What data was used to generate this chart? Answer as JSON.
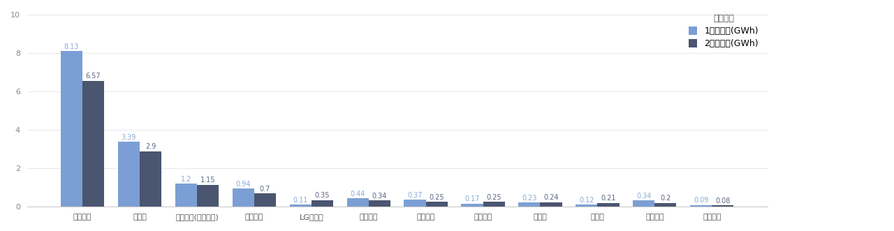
{
  "categories": [
    "宁德时代",
    "比亚迪",
    "中创新航(中航锂电)",
    "国轩高科",
    "LG新能源",
    "蜂巢能源",
    "亿纬锂能",
    "捷威动力",
    "欣旺达",
    "多氟多",
    "孚能科技",
    "瑞浦能源"
  ],
  "jan_values": [
    8.13,
    3.39,
    1.2,
    0.94,
    0.11,
    0.44,
    0.37,
    0.17,
    0.23,
    0.12,
    0.34,
    0.09
  ],
  "feb_values": [
    6.57,
    2.9,
    1.15,
    0.7,
    0.35,
    0.34,
    0.25,
    0.25,
    0.24,
    0.21,
    0.2,
    0.08
  ],
  "jan_color": "#7B9FD4",
  "feb_color": "#4A5570",
  "legend_title": "指标名称",
  "legend_jan": "1月装车量(GWh)",
  "legend_feb": "2月装车量(GWh)",
  "ylim": [
    0,
    10
  ],
  "yticks": [
    0,
    2,
    4,
    6,
    8,
    10
  ],
  "background_color": "#FFFFFF",
  "bar_width": 0.38,
  "label_fontsize": 7.0,
  "tick_fontsize": 8,
  "legend_fontsize": 9,
  "grid_color": "#E8EAF0",
  "jan_label_color": "#8BAAD8",
  "feb_label_color": "#5A6580"
}
